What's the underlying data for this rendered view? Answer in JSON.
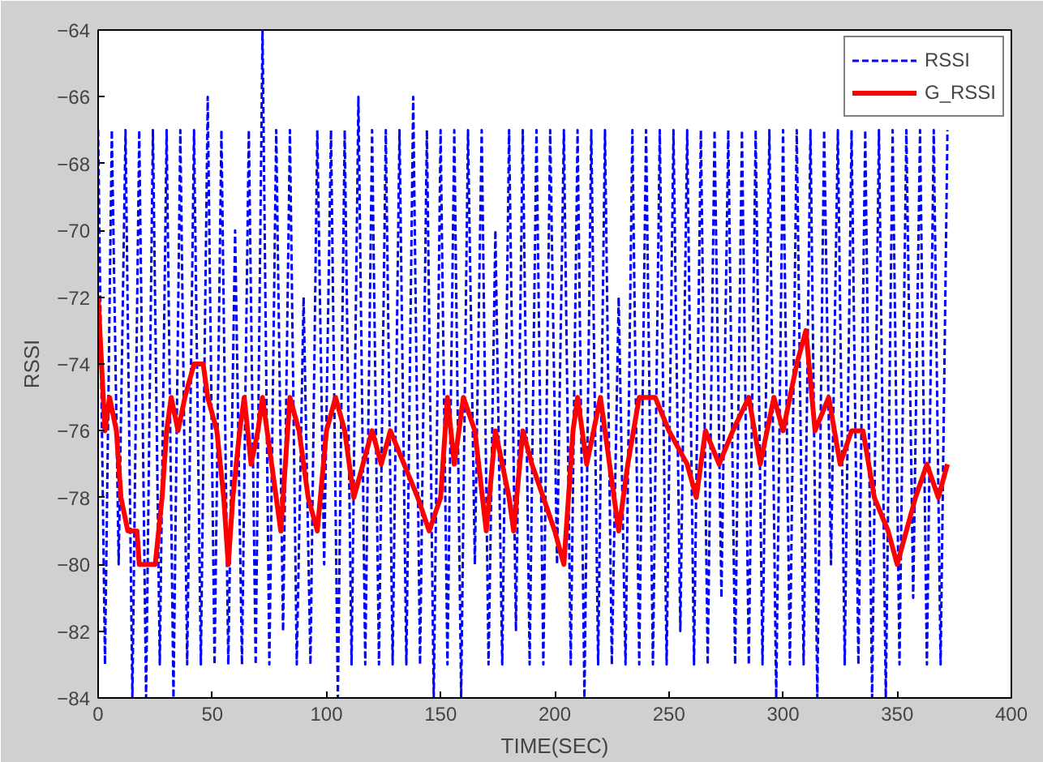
{
  "chart_data": {
    "type": "line",
    "xlabel": "TIME(SEC)",
    "ylabel": "RSSI",
    "xlim": [
      0,
      400
    ],
    "ylim": [
      -84,
      -64
    ],
    "xticks": [
      0,
      50,
      100,
      150,
      200,
      250,
      300,
      350,
      400
    ],
    "yticks": [
      -84,
      -82,
      -80,
      -78,
      -76,
      -74,
      -72,
      -70,
      -68,
      -66,
      -64
    ],
    "grid": false,
    "legend": "top right",
    "series": [
      {
        "name": "RSSI",
        "color": "#0000ff",
        "line_style": "dashed",
        "x": [
          0,
          3,
          6,
          9,
          12,
          15,
          18,
          21,
          24,
          27,
          30,
          33,
          36,
          39,
          42,
          45,
          48,
          51,
          54,
          57,
          60,
          63,
          66,
          69,
          72,
          75,
          78,
          81,
          84,
          87,
          90,
          93,
          96,
          99,
          102,
          105,
          108,
          111,
          114,
          117,
          120,
          123,
          126,
          129,
          132,
          135,
          138,
          141,
          144,
          147,
          150,
          153,
          156,
          159,
          162,
          165,
          168,
          171,
          174,
          177,
          180,
          183,
          186,
          189,
          192,
          195,
          198,
          201,
          204,
          207,
          210,
          213,
          216,
          219,
          222,
          225,
          228,
          231,
          234,
          237,
          240,
          243,
          246,
          249,
          252,
          255,
          258,
          261,
          264,
          267,
          270,
          273,
          276,
          279,
          282,
          285,
          288,
          291,
          294,
          297,
          300,
          303,
          306,
          309,
          312,
          315,
          318,
          321,
          324,
          327,
          330,
          333,
          336,
          339,
          342,
          345,
          348,
          351,
          354,
          357,
          360,
          363,
          366,
          369,
          372
        ],
        "values": [
          -67,
          -83,
          -67,
          -80,
          -67,
          -84,
          -67,
          -84,
          -67,
          -83,
          -67,
          -84,
          -67,
          -83,
          -67,
          -83,
          -66,
          -83,
          -67,
          -83,
          -70,
          -83,
          -67,
          -83,
          -64,
          -83,
          -67,
          -82,
          -67,
          -83,
          -72,
          -83,
          -67,
          -80,
          -67,
          -84,
          -67,
          -83,
          -66,
          -83,
          -67,
          -83,
          -67,
          -83,
          -67,
          -83,
          -66,
          -83,
          -67,
          -84,
          -67,
          -83,
          -67,
          -84,
          -67,
          -80,
          -67,
          -83,
          -70,
          -83,
          -67,
          -82,
          -67,
          -83,
          -67,
          -83,
          -67,
          -80,
          -67,
          -83,
          -67,
          -84,
          -67,
          -83,
          -67,
          -83,
          -72,
          -83,
          -67,
          -83,
          -67,
          -83,
          -67,
          -83,
          -67,
          -82,
          -67,
          -83,
          -67,
          -83,
          -67,
          -81,
          -67,
          -83,
          -67,
          -83,
          -67,
          -83,
          -67,
          -84,
          -67,
          -83,
          -67,
          -83,
          -67,
          -84,
          -67,
          -80,
          -67,
          -83,
          -67,
          -83,
          -67,
          -84,
          -67,
          -84,
          -67,
          -83,
          -67,
          -81,
          -67,
          -83,
          -67,
          -83,
          -67
        ]
      },
      {
        "name": "G_RSSI",
        "color": "#ff0000",
        "line_style": "solid",
        "x": [
          0,
          3,
          5,
          8,
          10,
          13,
          17,
          18,
          25,
          28,
          30,
          32,
          35,
          38,
          42,
          46,
          48,
          52,
          55,
          57,
          59,
          62,
          64,
          67,
          70,
          72,
          76,
          80,
          84,
          88,
          92,
          96,
          100,
          104,
          108,
          112,
          116,
          120,
          124,
          128,
          134,
          140,
          145,
          150,
          153,
          156,
          160,
          165,
          170,
          174,
          180,
          182,
          186,
          190,
          195,
          200,
          204,
          208,
          210,
          214,
          220,
          224,
          228,
          232,
          237,
          244,
          250,
          258,
          262,
          266,
          272,
          278,
          285,
          290,
          296,
          300,
          306,
          310,
          314,
          320,
          325,
          330,
          335,
          340,
          346,
          350,
          354,
          358,
          363,
          368,
          372
        ],
        "values": [
          -72,
          -76,
          -75,
          -76,
          -78,
          -79,
          -79,
          -80,
          -80,
          -78,
          -76,
          -75,
          -76,
          -75,
          -74,
          -74,
          -75,
          -76,
          -78,
          -80,
          -78,
          -76,
          -75,
          -77,
          -76,
          -75,
          -77,
          -79,
          -75,
          -76,
          -78,
          -79,
          -76,
          -75,
          -76,
          -78,
          -77,
          -76,
          -77,
          -76,
          -77,
          -78,
          -79,
          -78,
          -75,
          -77,
          -75,
          -76,
          -79,
          -76,
          -78,
          -79,
          -76,
          -77,
          -78,
          -79,
          -80,
          -76,
          -75,
          -77,
          -75,
          -77,
          -79,
          -77,
          -75,
          -75,
          -76,
          -77,
          -78,
          -76,
          -77,
          -76,
          -75,
          -77,
          -75,
          -76,
          -74,
          -73,
          -76,
          -75,
          -77,
          -76,
          -76,
          -78,
          -79,
          -80,
          -79,
          -78,
          -77,
          -78,
          -77
        ]
      }
    ]
  }
}
